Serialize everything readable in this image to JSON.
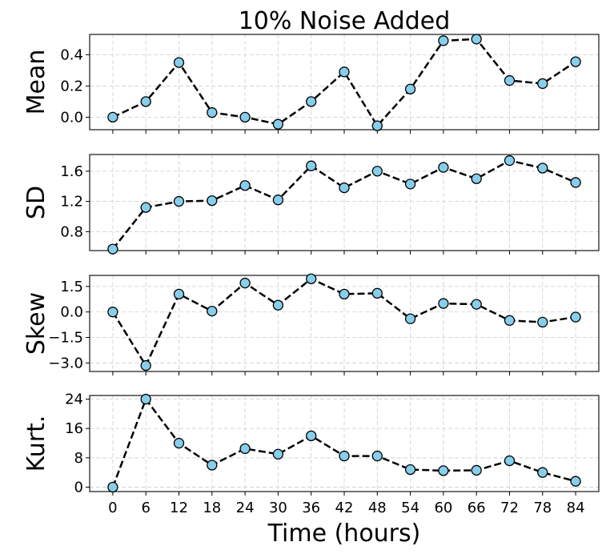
{
  "figure": {
    "title": "10% Noise Added",
    "xlabel": "Time (hours)"
  },
  "chart_data": [
    {
      "type": "line",
      "ylabel": "Mean",
      "x": [
        0,
        6,
        12,
        18,
        24,
        30,
        36,
        42,
        48,
        54,
        60,
        66,
        72,
        78,
        84
      ],
      "xlim": [
        -4.2,
        88.2
      ],
      "ylim": [
        -0.08,
        0.53
      ],
      "yticks": [
        0.0,
        0.2,
        0.4
      ],
      "ytick_labels": [
        "0.0",
        "0.2",
        "0.4"
      ],
      "series": [
        {
          "values": [
            0.0,
            0.1,
            0.35,
            0.03,
            0.0,
            -0.045,
            0.1,
            0.29,
            -0.055,
            0.18,
            0.49,
            0.5,
            0.235,
            0.215,
            0.355
          ]
        }
      ],
      "grid": true
    },
    {
      "type": "line",
      "ylabel": "SD",
      "x": [
        0,
        6,
        12,
        18,
        24,
        30,
        36,
        42,
        48,
        54,
        60,
        66,
        72,
        78,
        84
      ],
      "xlim": [
        -4.2,
        88.2
      ],
      "ylim": [
        0.55,
        1.82
      ],
      "yticks": [
        0.8,
        1.2,
        1.6
      ],
      "ytick_labels": [
        "0.8",
        "1.2",
        "1.6"
      ],
      "series": [
        {
          "values": [
            0.57,
            1.12,
            1.2,
            1.21,
            1.41,
            1.22,
            1.67,
            1.38,
            1.6,
            1.43,
            1.65,
            1.5,
            1.74,
            1.64,
            1.45
          ]
        }
      ],
      "grid": true
    },
    {
      "type": "line",
      "ylabel": "Skew",
      "x": [
        0,
        6,
        12,
        18,
        24,
        30,
        36,
        42,
        48,
        54,
        60,
        66,
        72,
        78,
        84
      ],
      "xlim": [
        -4.2,
        88.2
      ],
      "ylim": [
        -3.5,
        2.15
      ],
      "yticks": [
        -3.0,
        -1.5,
        0.0,
        1.5
      ],
      "ytick_labels": [
        "−3.0",
        "−1.5",
        "0.0",
        "1.5"
      ],
      "series": [
        {
          "values": [
            0.0,
            -3.15,
            1.05,
            0.05,
            1.7,
            0.4,
            1.95,
            1.05,
            1.1,
            -0.4,
            0.5,
            0.45,
            -0.5,
            -0.6,
            -0.3
          ]
        }
      ],
      "grid": true
    },
    {
      "type": "line",
      "ylabel": "Kurt.",
      "x": [
        0,
        6,
        12,
        18,
        24,
        30,
        36,
        42,
        48,
        54,
        60,
        66,
        72,
        78,
        84
      ],
      "xlim": [
        -4.2,
        88.2
      ],
      "ylim": [
        -1.2,
        25.0
      ],
      "yticks": [
        0,
        8,
        16,
        24
      ],
      "ytick_labels": [
        "0",
        "8",
        "16",
        "24"
      ],
      "xtick_labels": [
        "0",
        "6",
        "12",
        "18",
        "24",
        "30",
        "36",
        "42",
        "48",
        "54",
        "60",
        "66",
        "72",
        "78",
        "84"
      ],
      "series": [
        {
          "values": [
            0.0,
            24.0,
            12.0,
            6.0,
            10.5,
            9.0,
            14.0,
            8.5,
            8.5,
            4.8,
            4.5,
            4.6,
            7.2,
            4.0,
            1.6
          ]
        }
      ],
      "grid": true
    }
  ],
  "colors": {
    "marker_fill": "#87CEEB",
    "marker_edge": "#000000",
    "line": "#000000",
    "grid": "#d3d3d3"
  }
}
